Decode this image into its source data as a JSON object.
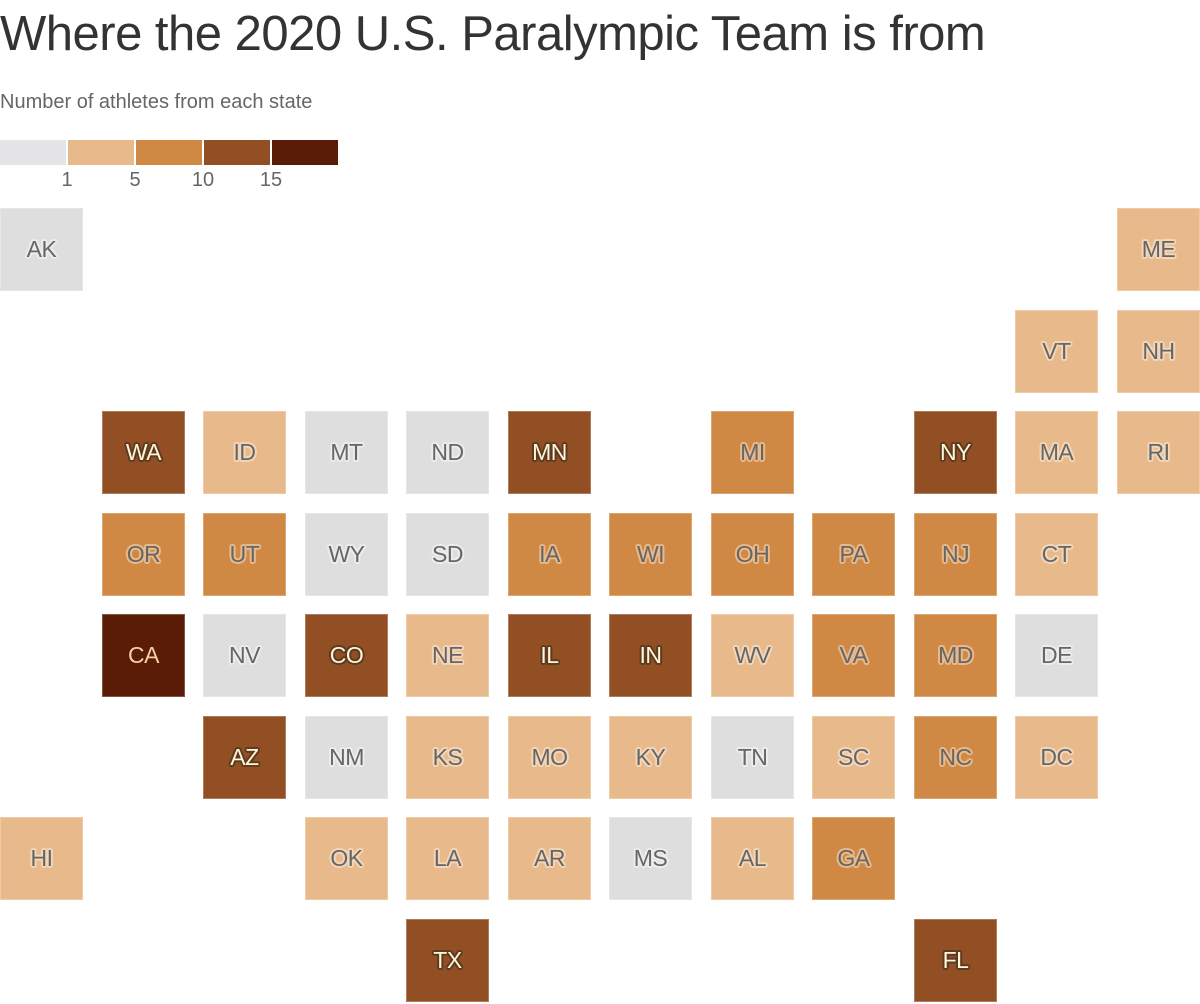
{
  "header": {
    "title": "Where the 2020 U.S. Paralympic Team is from",
    "subtitle": "Number of athletes from each state"
  },
  "legend": {
    "bins": [
      {
        "label": "0",
        "color": "#e5e5e7"
      },
      {
        "label": "1–4",
        "color": "#e8b98a"
      },
      {
        "label": "5–9",
        "color": "#d08944"
      },
      {
        "label": "10–14",
        "color": "#934f24"
      },
      {
        "label": "15+",
        "color": "#5a1c07"
      }
    ],
    "ticks": [
      "1",
      "5",
      "10",
      "15"
    ]
  },
  "colors": {
    "none": "#dedede",
    "low": "#e8b98a",
    "mid": "#d08944",
    "high": "#934f24",
    "top": "#5a1c07"
  },
  "chart_data": {
    "type": "heatmap",
    "subtype": "tile-grid-map",
    "title": "Where the 2020 U.S. Paralympic Team is from",
    "subtitle": "Number of athletes from each state",
    "legend": {
      "type": "threshold",
      "ticks": [
        1,
        5,
        10,
        15
      ],
      "bins": [
        "0",
        "1-4",
        "5-9",
        "10-14",
        "15+"
      ],
      "colors": [
        "#e5e5e7",
        "#e8b98a",
        "#d08944",
        "#934f24",
        "#5a1c07"
      ],
      "position": "top-left"
    },
    "states": [
      {
        "abbr": "AK",
        "col": 0,
        "row": 0,
        "bin": "0"
      },
      {
        "abbr": "ME",
        "col": 11,
        "row": 0,
        "bin": "1-4"
      },
      {
        "abbr": "VT",
        "col": 10,
        "row": 1,
        "bin": "1-4"
      },
      {
        "abbr": "NH",
        "col": 11,
        "row": 1,
        "bin": "1-4"
      },
      {
        "abbr": "WA",
        "col": 1,
        "row": 2,
        "bin": "10-14"
      },
      {
        "abbr": "ID",
        "col": 2,
        "row": 2,
        "bin": "1-4"
      },
      {
        "abbr": "MT",
        "col": 3,
        "row": 2,
        "bin": "0"
      },
      {
        "abbr": "ND",
        "col": 4,
        "row": 2,
        "bin": "0"
      },
      {
        "abbr": "MN",
        "col": 5,
        "row": 2,
        "bin": "10-14"
      },
      {
        "abbr": "MI",
        "col": 7,
        "row": 2,
        "bin": "5-9"
      },
      {
        "abbr": "NY",
        "col": 9,
        "row": 2,
        "bin": "10-14"
      },
      {
        "abbr": "MA",
        "col": 10,
        "row": 2,
        "bin": "1-4"
      },
      {
        "abbr": "RI",
        "col": 11,
        "row": 2,
        "bin": "1-4"
      },
      {
        "abbr": "OR",
        "col": 1,
        "row": 3,
        "bin": "5-9"
      },
      {
        "abbr": "UT",
        "col": 2,
        "row": 3,
        "bin": "5-9"
      },
      {
        "abbr": "WY",
        "col": 3,
        "row": 3,
        "bin": "0"
      },
      {
        "abbr": "SD",
        "col": 4,
        "row": 3,
        "bin": "0"
      },
      {
        "abbr": "IA",
        "col": 5,
        "row": 3,
        "bin": "5-9"
      },
      {
        "abbr": "WI",
        "col": 6,
        "row": 3,
        "bin": "5-9"
      },
      {
        "abbr": "OH",
        "col": 7,
        "row": 3,
        "bin": "5-9"
      },
      {
        "abbr": "PA",
        "col": 8,
        "row": 3,
        "bin": "5-9"
      },
      {
        "abbr": "NJ",
        "col": 9,
        "row": 3,
        "bin": "5-9"
      },
      {
        "abbr": "CT",
        "col": 10,
        "row": 3,
        "bin": "1-4"
      },
      {
        "abbr": "CA",
        "col": 1,
        "row": 4,
        "bin": "15+"
      },
      {
        "abbr": "NV",
        "col": 2,
        "row": 4,
        "bin": "0"
      },
      {
        "abbr": "CO",
        "col": 3,
        "row": 4,
        "bin": "10-14"
      },
      {
        "abbr": "NE",
        "col": 4,
        "row": 4,
        "bin": "1-4"
      },
      {
        "abbr": "IL",
        "col": 5,
        "row": 4,
        "bin": "10-14"
      },
      {
        "abbr": "IN",
        "col": 6,
        "row": 4,
        "bin": "10-14"
      },
      {
        "abbr": "WV",
        "col": 7,
        "row": 4,
        "bin": "1-4"
      },
      {
        "abbr": "VA",
        "col": 8,
        "row": 4,
        "bin": "5-9"
      },
      {
        "abbr": "MD",
        "col": 9,
        "row": 4,
        "bin": "5-9"
      },
      {
        "abbr": "DE",
        "col": 10,
        "row": 4,
        "bin": "0"
      },
      {
        "abbr": "AZ",
        "col": 2,
        "row": 5,
        "bin": "10-14"
      },
      {
        "abbr": "NM",
        "col": 3,
        "row": 5,
        "bin": "0"
      },
      {
        "abbr": "KS",
        "col": 4,
        "row": 5,
        "bin": "1-4"
      },
      {
        "abbr": "MO",
        "col": 5,
        "row": 5,
        "bin": "1-4"
      },
      {
        "abbr": "KY",
        "col": 6,
        "row": 5,
        "bin": "1-4"
      },
      {
        "abbr": "TN",
        "col": 7,
        "row": 5,
        "bin": "0"
      },
      {
        "abbr": "SC",
        "col": 8,
        "row": 5,
        "bin": "1-4"
      },
      {
        "abbr": "NC",
        "col": 9,
        "row": 5,
        "bin": "5-9"
      },
      {
        "abbr": "DC",
        "col": 10,
        "row": 5,
        "bin": "1-4"
      },
      {
        "abbr": "HI",
        "col": 0,
        "row": 6,
        "bin": "1-4"
      },
      {
        "abbr": "OK",
        "col": 3,
        "row": 6,
        "bin": "1-4"
      },
      {
        "abbr": "LA",
        "col": 4,
        "row": 6,
        "bin": "1-4"
      },
      {
        "abbr": "AR",
        "col": 5,
        "row": 6,
        "bin": "1-4"
      },
      {
        "abbr": "MS",
        "col": 6,
        "row": 6,
        "bin": "0"
      },
      {
        "abbr": "AL",
        "col": 7,
        "row": 6,
        "bin": "1-4"
      },
      {
        "abbr": "GA",
        "col": 8,
        "row": 6,
        "bin": "5-9"
      },
      {
        "abbr": "TX",
        "col": 4,
        "row": 7,
        "bin": "10-14"
      },
      {
        "abbr": "FL",
        "col": 9,
        "row": 7,
        "bin": "10-14"
      }
    ]
  }
}
